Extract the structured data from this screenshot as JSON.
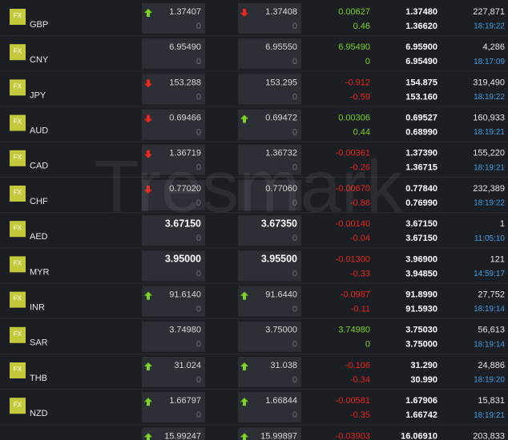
{
  "watermark": "Tresmark",
  "rows": [
    {
      "icon": "FX",
      "symbol": "GBP",
      "bid": "1.37407",
      "bid_qty": "0",
      "bid_dir": "up",
      "ask": "1.37408",
      "ask_qty": "0",
      "ask_dir": "down",
      "change": "0.00627",
      "change_pct": "0.46",
      "trend": "up",
      "high": "1.37480",
      "low": "1.36620",
      "volume": "227,871",
      "time": "18:19:22"
    },
    {
      "icon": "FX",
      "symbol": "CNY",
      "bid": "6.95490",
      "bid_qty": "0",
      "ask": "6.95550",
      "ask_qty": "0",
      "change": "6.95490",
      "change_pct": "0",
      "trend": "up",
      "high": "6.95900",
      "low": "6.95490",
      "volume": "4,286",
      "time": "18:17:09"
    },
    {
      "icon": "FX",
      "symbol": "JPY",
      "bid": "153.288",
      "bid_qty": "0",
      "bid_dir": "down",
      "ask": "153.295",
      "ask_qty": "0",
      "change": "-0.912",
      "change_pct": "-0.59",
      "trend": "down",
      "high": "154.875",
      "low": "153.160",
      "volume": "319,490",
      "time": "18:19:22"
    },
    {
      "icon": "FX",
      "symbol": "AUD",
      "bid": "0.69466",
      "bid_qty": "0",
      "bid_dir": "down",
      "ask": "0.69472",
      "ask_qty": "0",
      "ask_dir": "up",
      "change": "0.00306",
      "change_pct": "0.44",
      "trend": "up",
      "high": "0.69527",
      "low": "0.68990",
      "volume": "160,933",
      "time": "18:19:21"
    },
    {
      "icon": "FX",
      "symbol": "CAD",
      "bid": "1.36719",
      "bid_qty": "0",
      "bid_dir": "down",
      "ask": "1.36732",
      "ask_qty": "0",
      "change": "-0.00361",
      "change_pct": "-0.26",
      "trend": "down",
      "high": "1.37390",
      "low": "1.36715",
      "volume": "155,220",
      "time": "18:19:21"
    },
    {
      "icon": "FX",
      "symbol": "CHF",
      "bid": "0.77020",
      "bid_qty": "0",
      "bid_dir": "down",
      "ask": "0.77060",
      "ask_qty": "0",
      "change": "-0.00670",
      "change_pct": "-0.86",
      "trend": "down",
      "high": "0.77840",
      "low": "0.76990",
      "volume": "232,389",
      "time": "18:19:22"
    },
    {
      "icon": "FX",
      "symbol": "AED",
      "bid": "3.67150",
      "bid_qty": "0",
      "ask": "3.67350",
      "ask_qty": "0",
      "highlight": true,
      "change": "-0.00140",
      "change_pct": "-0.04",
      "trend": "down",
      "high": "3.67150",
      "low": "3.67150",
      "volume": "1",
      "time": "11:05:10"
    },
    {
      "icon": "FX",
      "symbol": "MYR",
      "bid": "3.95000",
      "bid_qty": "0",
      "ask": "3.95500",
      "ask_qty": "0",
      "highlight": true,
      "change": "-0.01300",
      "change_pct": "-0.33",
      "trend": "down",
      "high": "3.96900",
      "low": "3.94850",
      "volume": "121",
      "time": "14:59:17"
    },
    {
      "icon": "FX",
      "symbol": "INR",
      "bid": "91.6140",
      "bid_qty": "0",
      "bid_dir": "up",
      "ask": "91.6440",
      "ask_qty": "0",
      "ask_dir": "up",
      "change": "-0.0987",
      "change_pct": "-0.11",
      "trend": "down",
      "high": "91.8990",
      "low": "91.5930",
      "volume": "27,752",
      "time": "18:19:14"
    },
    {
      "icon": "FX",
      "symbol": "SAR",
      "bid": "3.74980",
      "bid_qty": "0",
      "ask": "3.75000",
      "ask_qty": "0",
      "change": "3.74980",
      "change_pct": "0",
      "trend": "up",
      "high": "3.75030",
      "low": "3.75000",
      "volume": "56,613",
      "time": "18:19:14"
    },
    {
      "icon": "FX",
      "symbol": "THB",
      "bid": "31.024",
      "bid_qty": "0",
      "bid_dir": "up",
      "ask": "31.038",
      "ask_qty": "0",
      "ask_dir": "up",
      "change": "-0.106",
      "change_pct": "-0.34",
      "trend": "down",
      "high": "31.290",
      "low": "30.990",
      "volume": "24,886",
      "time": "18:19:20"
    },
    {
      "icon": "FX",
      "symbol": "NZD",
      "bid": "1.66797",
      "bid_qty": "0",
      "bid_dir": "up",
      "ask": "1.66844",
      "ask_qty": "0",
      "ask_dir": "up",
      "change": "-0.00581",
      "change_pct": "-0.35",
      "trend": "down",
      "high": "1.67906",
      "low": "1.66742",
      "volume": "15,831",
      "time": "18:19:21"
    },
    {
      "bid": "15.99247",
      "bid_dir": "up",
      "ask": "15.99897",
      "ask_dir": "up",
      "change": "-0.03903",
      "trend": "down",
      "high": "16.06910",
      "volume": "203,833"
    }
  ]
}
